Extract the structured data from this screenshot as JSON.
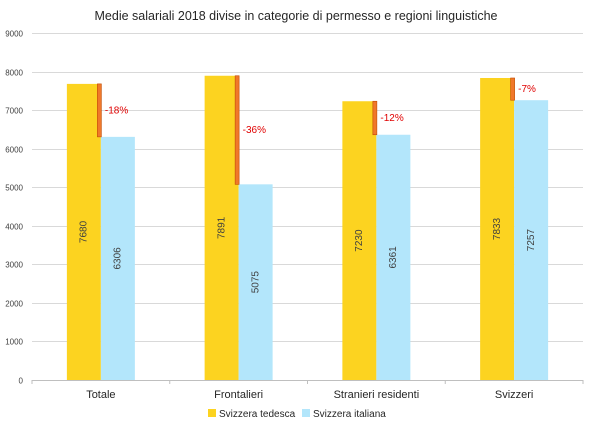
{
  "chart_data": {
    "type": "bar",
    "title": "Medie salariali 2018 divise in categorie di permesso  e regioni linguistiche",
    "xlabel": "",
    "ylabel": "",
    "ylim": [
      0,
      9000
    ],
    "yticks": [
      "0",
      "1000",
      "2000",
      "3000",
      "4000",
      "5000",
      "6000",
      "7000",
      "8000",
      "9000"
    ],
    "categories": [
      "Totale",
      "Frontalieri",
      "Stranieri residenti",
      "Svizzeri"
    ],
    "series": [
      {
        "name": "Svizzera tedesca",
        "values": [
          7680,
          7891,
          7230,
          7833
        ],
        "labels": [
          "7680",
          "7891",
          "7230",
          "7833"
        ],
        "color": "#fcd320"
      },
      {
        "name": "Svizzera italiana",
        "values": [
          6306,
          5075,
          6361,
          7257
        ],
        "labels": [
          "6306",
          "5075",
          "6361",
          "7257"
        ],
        "color": "#b3e6fb"
      }
    ],
    "differences": [
      "-18%",
      "-36%",
      "-12%",
      "-7%"
    ],
    "difference_color": "#f0782a",
    "difference_label_color": "#e00000",
    "grid": true,
    "legend_position": "bottom"
  }
}
